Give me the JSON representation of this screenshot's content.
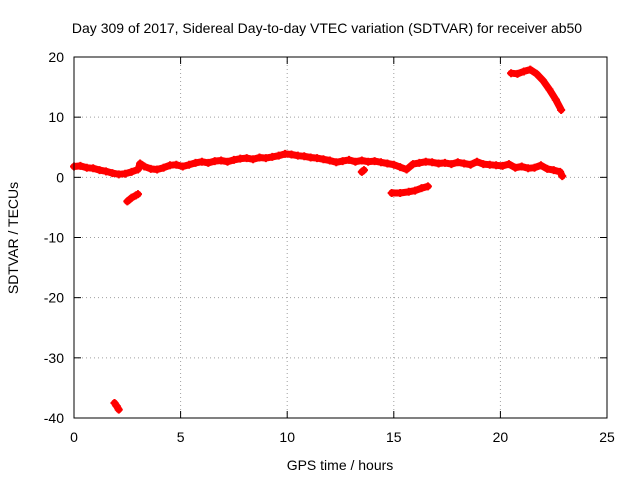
{
  "chart_data": {
    "type": "scatter",
    "title": "Day 309 of 2017, Sidereal Day-to-day VTEC variation (SDTVAR) for receiver ab50",
    "xlabel": "GPS time / hours",
    "ylabel": "SDTVAR / TECUs",
    "xlim": [
      0,
      25
    ],
    "ylim": [
      -40,
      20
    ],
    "xticks": [
      0,
      5,
      10,
      15,
      20,
      25
    ],
    "yticks": [
      -40,
      -30,
      -20,
      -10,
      0,
      10,
      20
    ],
    "grid": true,
    "point_color": "#ff0000",
    "series": [
      {
        "name": "main trace",
        "points": [
          [
            0.0,
            1.8
          ],
          [
            0.3,
            1.9
          ],
          [
            0.6,
            1.6
          ],
          [
            0.9,
            1.5
          ],
          [
            1.2,
            1.2
          ],
          [
            1.5,
            1.0
          ],
          [
            1.8,
            0.7
          ],
          [
            2.1,
            0.5
          ],
          [
            2.4,
            0.6
          ],
          [
            2.7,
            0.9
          ],
          [
            3.0,
            1.3
          ],
          [
            3.1,
            2.3
          ],
          [
            3.3,
            1.8
          ],
          [
            3.6,
            1.4
          ],
          [
            3.9,
            1.3
          ],
          [
            4.2,
            1.6
          ],
          [
            4.5,
            2.0
          ],
          [
            4.8,
            2.1
          ],
          [
            5.1,
            1.8
          ],
          [
            5.4,
            2.1
          ],
          [
            5.7,
            2.4
          ],
          [
            6.0,
            2.6
          ],
          [
            6.3,
            2.4
          ],
          [
            6.6,
            2.7
          ],
          [
            6.9,
            2.8
          ],
          [
            7.2,
            2.6
          ],
          [
            7.5,
            2.9
          ],
          [
            7.8,
            3.1
          ],
          [
            8.1,
            3.2
          ],
          [
            8.4,
            3.0
          ],
          [
            8.7,
            3.3
          ],
          [
            9.0,
            3.2
          ],
          [
            9.3,
            3.4
          ],
          [
            9.6,
            3.6
          ],
          [
            9.9,
            3.9
          ],
          [
            10.2,
            3.8
          ],
          [
            10.5,
            3.6
          ],
          [
            10.8,
            3.5
          ],
          [
            11.1,
            3.3
          ],
          [
            11.4,
            3.2
          ],
          [
            11.7,
            3.0
          ],
          [
            12.0,
            2.8
          ],
          [
            12.3,
            2.5
          ],
          [
            12.6,
            2.7
          ],
          [
            12.9,
            2.9
          ],
          [
            13.2,
            2.6
          ],
          [
            13.5,
            2.8
          ],
          [
            13.8,
            2.6
          ],
          [
            14.1,
            2.7
          ],
          [
            14.4,
            2.5
          ],
          [
            14.7,
            2.3
          ],
          [
            15.0,
            2.1
          ],
          [
            15.3,
            1.7
          ],
          [
            15.6,
            1.3
          ],
          [
            15.9,
            2.2
          ],
          [
            16.2,
            2.4
          ],
          [
            16.5,
            2.6
          ],
          [
            16.8,
            2.5
          ],
          [
            17.1,
            2.3
          ],
          [
            17.4,
            2.4
          ],
          [
            17.7,
            2.2
          ],
          [
            18.0,
            2.5
          ],
          [
            18.3,
            2.3
          ],
          [
            18.6,
            2.1
          ],
          [
            18.9,
            2.6
          ],
          [
            19.2,
            2.2
          ],
          [
            19.5,
            2.1
          ],
          [
            19.8,
            2.0
          ],
          [
            20.1,
            1.9
          ],
          [
            20.4,
            2.2
          ],
          [
            20.7,
            1.6
          ],
          [
            21.0,
            1.8
          ],
          [
            21.3,
            1.5
          ],
          [
            21.6,
            1.6
          ],
          [
            21.9,
            2.0
          ],
          [
            22.2,
            1.4
          ],
          [
            22.5,
            1.2
          ],
          [
            22.8,
            0.9
          ],
          [
            22.9,
            0.2
          ]
        ]
      },
      {
        "name": "short dip",
        "points": [
          [
            13.5,
            0.9
          ],
          [
            13.6,
            1.2
          ]
        ]
      },
      {
        "name": "lower segment",
        "points": [
          [
            14.9,
            -2.6
          ],
          [
            15.3,
            -2.6
          ],
          [
            15.7,
            -2.4
          ],
          [
            16.0,
            -2.2
          ],
          [
            16.3,
            -1.8
          ],
          [
            16.6,
            -1.5
          ]
        ]
      },
      {
        "name": "early negative",
        "points": [
          [
            2.5,
            -4.0
          ],
          [
            2.7,
            -3.4
          ],
          [
            2.9,
            -3.0
          ],
          [
            3.0,
            -2.8
          ]
        ]
      },
      {
        "name": "outlier",
        "points": [
          [
            1.9,
            -37.5
          ],
          [
            2.0,
            -38.0
          ],
          [
            2.1,
            -38.6
          ]
        ]
      },
      {
        "name": "late high",
        "points": [
          [
            20.5,
            17.3
          ],
          [
            20.8,
            17.2
          ],
          [
            21.1,
            17.6
          ],
          [
            21.4,
            17.9
          ],
          [
            21.7,
            17.2
          ],
          [
            22.0,
            16.1
          ],
          [
            22.3,
            14.6
          ],
          [
            22.6,
            12.9
          ],
          [
            22.85,
            11.2
          ]
        ]
      }
    ]
  }
}
